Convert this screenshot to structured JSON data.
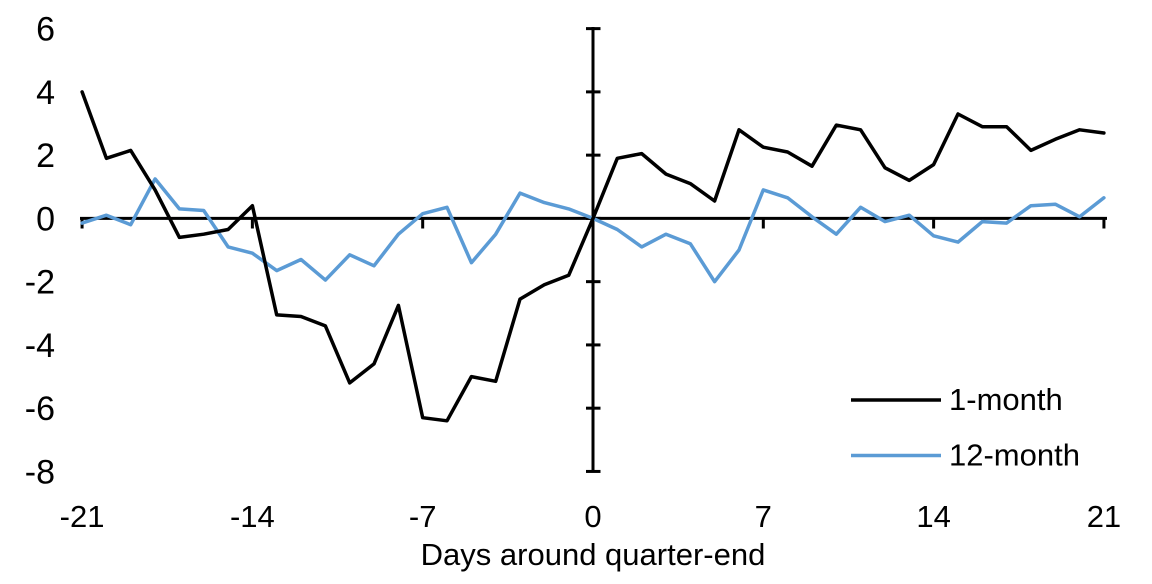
{
  "chart_data": {
    "type": "line",
    "title": "",
    "xlabel": "Days around quarter-end",
    "ylabel": "",
    "xlim": [
      -21,
      21
    ],
    "ylim": [
      -8,
      6
    ],
    "x_ticks": [
      -21,
      -14,
      -7,
      0,
      7,
      14,
      21
    ],
    "y_ticks": [
      6,
      4,
      2,
      0,
      -2,
      -4,
      -6,
      -8
    ],
    "grid": false,
    "legend_position": "inside-bottom-right",
    "axis_color": "#000000",
    "background_color": "#FFFFFF",
    "x": [
      -21,
      -20,
      -19,
      -18,
      -17,
      -16,
      -15,
      -14,
      -13,
      -12,
      -11,
      -10,
      -9,
      -8,
      -7,
      -6,
      -5,
      -4,
      -3,
      -2,
      -1,
      0,
      1,
      2,
      3,
      4,
      5,
      6,
      7,
      8,
      9,
      10,
      11,
      12,
      13,
      14,
      15,
      16,
      17,
      18,
      19,
      20,
      21
    ],
    "series": [
      {
        "name": "1-month",
        "color": "#000000",
        "values": [
          4.0,
          1.9,
          2.15,
          0.9,
          -0.6,
          -0.5,
          -0.35,
          0.4,
          -3.05,
          -3.1,
          -3.4,
          -5.2,
          -4.6,
          -2.75,
          -6.3,
          -6.4,
          -5.0,
          -5.15,
          -2.55,
          -2.1,
          -1.8,
          0.0,
          1.9,
          2.05,
          1.4,
          1.1,
          0.55,
          2.8,
          2.25,
          2.1,
          1.65,
          2.95,
          2.8,
          1.6,
          1.2,
          1.7,
          3.3,
          2.9,
          2.9,
          2.15,
          2.5,
          2.8,
          2.7
        ]
      },
      {
        "name": "12-month",
        "color": "#5B9BD5",
        "values": [
          -0.15,
          0.1,
          -0.2,
          1.25,
          0.3,
          0.25,
          -0.9,
          -1.1,
          -1.65,
          -1.3,
          -1.95,
          -1.15,
          -1.5,
          -0.5,
          0.15,
          0.35,
          -1.4,
          -0.5,
          0.8,
          0.5,
          0.3,
          0.0,
          -0.35,
          -0.9,
          -0.5,
          -0.8,
          -2.0,
          -1.0,
          0.9,
          0.65,
          0.05,
          -0.5,
          0.35,
          -0.1,
          0.1,
          -0.55,
          -0.75,
          -0.1,
          -0.15,
          0.4,
          0.45,
          0.05,
          0.65
        ]
      }
    ]
  }
}
